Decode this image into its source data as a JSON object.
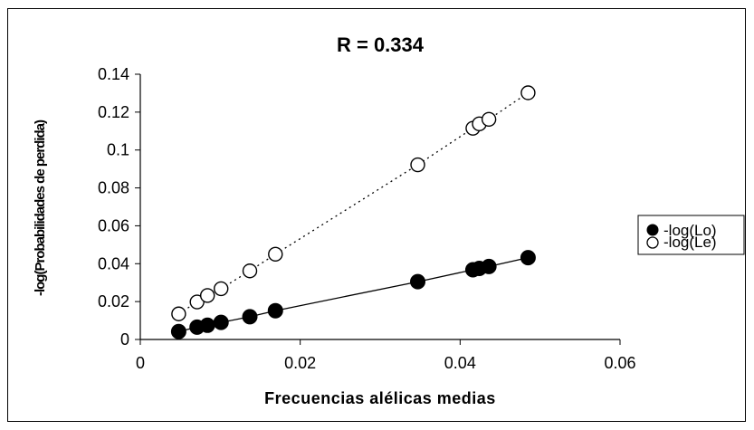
{
  "chart_data": {
    "type": "scatter",
    "title": "R = 0.334",
    "xlabel": "Frecuencias alélicas medias",
    "ylabel": "-log(Probabilidades de perdida)",
    "xlim": [
      0,
      0.06
    ],
    "ylim": [
      0,
      0.14
    ],
    "x_ticks": [
      "0",
      "0.02",
      "0.04",
      "0.06"
    ],
    "y_ticks": [
      "0",
      "0.02",
      "0.04",
      "0.06",
      "0.08",
      "0.1",
      "0.12",
      "0.14"
    ],
    "x_tick_values": [
      0,
      0.02,
      0.04,
      0.06
    ],
    "y_tick_values": [
      0,
      0.02,
      0.04,
      0.06,
      0.08,
      0.1,
      0.12,
      0.14
    ],
    "grid": false,
    "legend_position": "right",
    "series": [
      {
        "name": "-log(Lo)",
        "marker": "filled-circle",
        "color": "#000000",
        "line": "solid",
        "points": [
          [
            0.0048,
            0.0042
          ],
          [
            0.0071,
            0.0065
          ],
          [
            0.0084,
            0.0075
          ],
          [
            0.0101,
            0.009
          ],
          [
            0.0137,
            0.012
          ],
          [
            0.0169,
            0.0152
          ],
          [
            0.0347,
            0.0305
          ],
          [
            0.0416,
            0.0368
          ],
          [
            0.0424,
            0.0375
          ],
          [
            0.0436,
            0.0385
          ],
          [
            0.0485,
            0.0432
          ]
        ]
      },
      {
        "name": "-log(Le)",
        "marker": "open-circle",
        "color": "#000000",
        "line": "dotted",
        "points": [
          [
            0.0048,
            0.0135
          ],
          [
            0.0071,
            0.0198
          ],
          [
            0.0084,
            0.0232
          ],
          [
            0.0101,
            0.0268
          ],
          [
            0.0137,
            0.0362
          ],
          [
            0.0169,
            0.045
          ],
          [
            0.0347,
            0.0922
          ],
          [
            0.0416,
            0.1115
          ],
          [
            0.0424,
            0.1138
          ],
          [
            0.0436,
            0.1162
          ],
          [
            0.0485,
            0.1302
          ]
        ]
      }
    ]
  }
}
